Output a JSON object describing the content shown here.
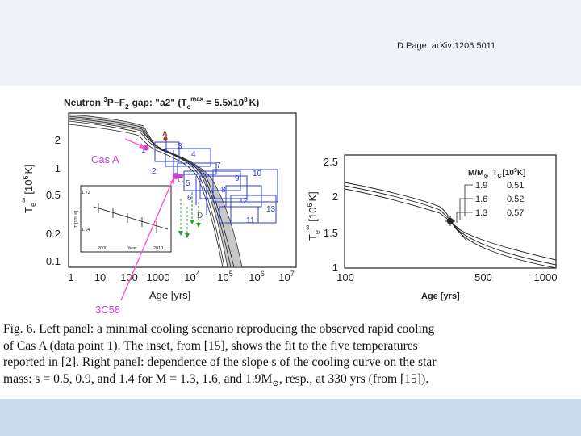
{
  "slide": {
    "reference": "D.Page, arXiv:1206.5011",
    "annotation_casa": "Cas A",
    "annotation_3c58": "3C58"
  },
  "left_panel": {
    "title_prefix": "Neutron",
    "title_sup": "3",
    "title_mid": "P−F",
    "title_sub": "2",
    "title_gap": "gap: \"a2\" (T",
    "title_c": "c",
    "title_max": "max",
    "title_val": "= 5.5x10",
    "title_exp": "8",
    "title_unit": "K)",
    "ylabel_main": "T",
    "ylabel_sub": "e",
    "ylabel_sup": "∞",
    "ylabel_unit": "[10",
    "ylabel_exp": "6",
    "ylabel_k": "K]",
    "xlabel": "Age [yrs]",
    "yticks": [
      "2",
      "1",
      "0.5",
      "0.2",
      "0.1"
    ],
    "xticks": [
      "1",
      "10",
      "100",
      "1000"
    ],
    "xticks_pow": [
      {
        "base": "10",
        "exp": "4"
      },
      {
        "base": "10",
        "exp": "5"
      },
      {
        "base": "10",
        "exp": "6"
      },
      {
        "base": "10",
        "exp": "7"
      }
    ],
    "letter_labels": [
      "A",
      "B",
      "C",
      "D"
    ],
    "point_numbers": [
      "1",
      "2",
      "3",
      "4",
      "5",
      "6",
      "7",
      "8",
      "9",
      "10",
      "11",
      "12",
      "13"
    ],
    "inset": {
      "ytick1": "1.72",
      "ytick2": "1.64",
      "xtick1": "2000",
      "xtick2": "2010",
      "xlabel": "Year",
      "ylabel": "T [10⁶ K]"
    }
  },
  "right_panel": {
    "ylabel_main": "T",
    "ylabel_sub": "e",
    "ylabel_sup": "∞",
    "ylabel_unit": "[10",
    "ylabel_exp": "6",
    "ylabel_k": "K]",
    "xlabel": "Age [yrs]",
    "yticks": [
      "2.5",
      "2",
      "1.5",
      "1"
    ],
    "xticks": [
      "100",
      "500",
      "1000"
    ],
    "legend_head_m": "M/M",
    "legend_head_sun": "⊙",
    "legend_head_tc": "T",
    "legend_head_tc_sub": "C",
    "legend_head_tc_unit": "[10",
    "legend_head_tc_exp": "9",
    "legend_head_tc_k": "K]",
    "legend_rows": [
      {
        "mass": "1.9",
        "tc": "0.51"
      },
      {
        "mass": "1.6",
        "tc": "0.52"
      },
      {
        "mass": "1.3",
        "tc": "0.57"
      }
    ]
  },
  "caption": {
    "line1": "Fig. 6.   Left panel: a minimal cooling scenario reproducing the observed rapid cooling",
    "line2": "of Cas A (data point 1).  The inset, from [15], shows the fit to the five temperatures",
    "line3": "reported in [2].  Right panel: dependence of the slope s of the cooling curve on the star",
    "line4_a": "mass: s = 0.5, 0.9, and 1.4 for M = 1.3, 1.6, and 1.9M",
    "line4_sun": "⊙",
    "line4_b": ", resp., at 330 yrs (from [15])."
  },
  "colors": {
    "data_blue": "#2a3fd0",
    "data_green": "#2a9a2a",
    "casa_magenta": "#d040d0",
    "arrow_pink": "#ff55cc",
    "point_a_red": "#aa3311",
    "band_gray": "#c8c8c8"
  }
}
